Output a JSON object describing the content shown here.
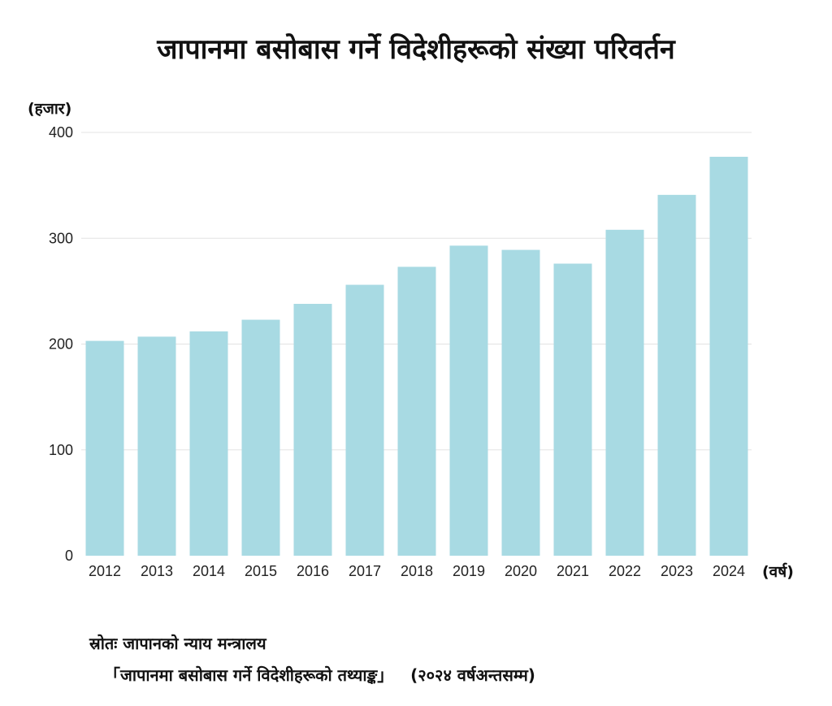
{
  "chart_data": {
    "type": "bar",
    "title": "जापानमा बसोबास गर्ने विदेशीहरूको संख्या परिवर्तन",
    "ylabel": "(हजार)",
    "xlabel": "(वर्ष)",
    "categories": [
      "2012",
      "2013",
      "2014",
      "2015",
      "2016",
      "2017",
      "2018",
      "2019",
      "2020",
      "2021",
      "2022",
      "2023",
      "2024"
    ],
    "values": [
      203,
      207,
      212,
      223,
      238,
      256,
      273,
      293,
      289,
      276,
      308,
      341,
      377
    ],
    "ylim": [
      0,
      400
    ],
    "yticks": [
      "0",
      "100",
      "200",
      "300",
      "400"
    ],
    "grid": true,
    "bar_color": "#a8dae3"
  },
  "source": {
    "line1": "स्रोतः जापानको न्याय मन्त्रालय",
    "line2": "「जापानमा बसोबास गर्ने विदेशीहरूको तथ्याङ्क」   (२०२४ वर्षअन्तसम्म)"
  }
}
